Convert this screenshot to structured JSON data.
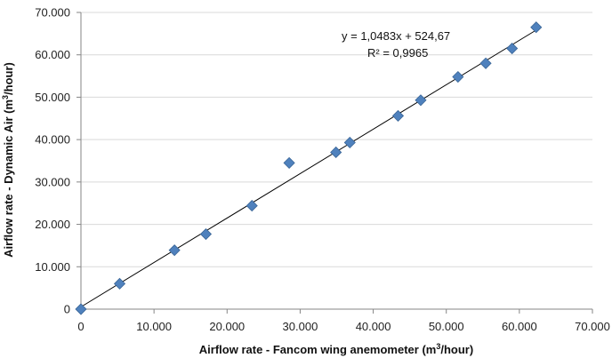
{
  "chart_data": {
    "type": "scatter",
    "x_ticks": [
      "0",
      "10.000",
      "20.000",
      "30.000",
      "40.000",
      "50.000",
      "60.000",
      "70.000"
    ],
    "y_ticks": [
      "0",
      "10.000",
      "20.000",
      "30.000",
      "40.000",
      "50.000",
      "60.000",
      "70.000"
    ],
    "xlim": [
      0,
      70000
    ],
    "ylim": [
      0,
      70000
    ],
    "xlabel": {
      "prefix": "Airflow rate - Fancom wing anemometer (m",
      "sup": "3",
      "suffix": "/hour)"
    },
    "ylabel": {
      "prefix": "Airflow rate - Dynamic Air (m",
      "sup": "3",
      "suffix": "/hour)"
    },
    "grid": "horizontal",
    "legend": "none",
    "marker_color": "#4F81BD",
    "marker_edge": "#3A6596",
    "trendline": {
      "slope": 1.0483,
      "intercept": 524.67,
      "equation": "y = 1,0483x + 524,67",
      "r_squared": "R² = 0,9965",
      "color": "#000000"
    },
    "points": [
      {
        "x": 0,
        "y": 0
      },
      {
        "x": 5300,
        "y": 6000
      },
      {
        "x": 12800,
        "y": 13900
      },
      {
        "x": 17100,
        "y": 17700
      },
      {
        "x": 23400,
        "y": 24400
      },
      {
        "x": 28500,
        "y": 34500
      },
      {
        "x": 34900,
        "y": 37000
      },
      {
        "x": 36800,
        "y": 39300
      },
      {
        "x": 43400,
        "y": 45600
      },
      {
        "x": 46500,
        "y": 49300
      },
      {
        "x": 51600,
        "y": 54800
      },
      {
        "x": 55400,
        "y": 58000
      },
      {
        "x": 59000,
        "y": 61500
      },
      {
        "x": 62300,
        "y": 66500
      }
    ]
  }
}
